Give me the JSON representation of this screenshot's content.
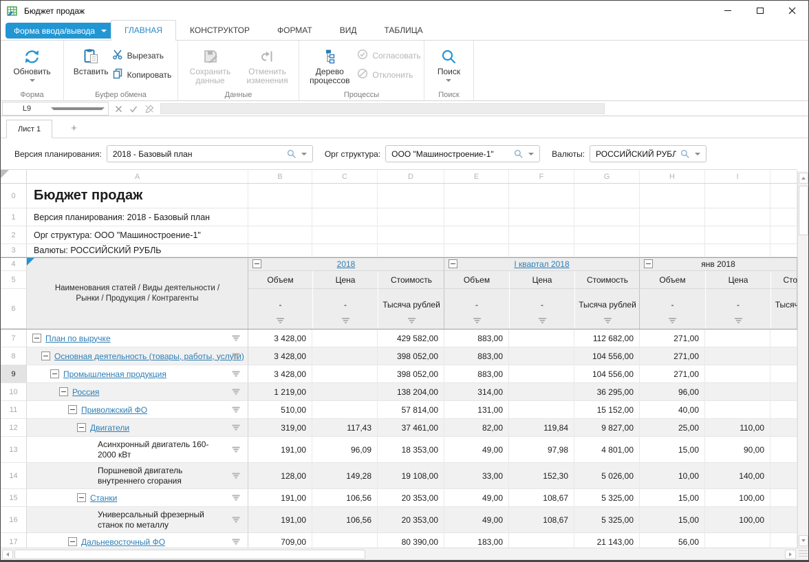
{
  "window": {
    "title": "Бюджет продаж"
  },
  "app_button": {
    "label": "Форма ввода/вывода"
  },
  "tabs": [
    "ГЛАВНАЯ",
    "КОНСТРУКТОР",
    "ФОРМАТ",
    "ВИД",
    "ТАБЛИЦА"
  ],
  "active_tab": "ГЛАВНАЯ",
  "ribbon": {
    "refresh_label": "Обновить",
    "paste_label": "Вставить",
    "cut_label": "Вырезать",
    "copy_label": "Копировать",
    "save_label": "Сохранить данные",
    "undo_label": "Отменить изменения",
    "tree_label": "Дерево процессов",
    "approve_label": "Согласовать",
    "reject_label": "Отклонить",
    "search_label": "Поиск",
    "group_form": "Форма",
    "group_clipboard": "Буфер обмена",
    "group_data": "Данные",
    "group_processes": "Процессы",
    "group_search": "Поиск",
    "accent_color": "#2196d3",
    "icon_color": "#2b7cb5",
    "disabled_color": "#b5b5b5"
  },
  "formula_bar": {
    "cell_ref": "L9",
    "formula": ""
  },
  "sheet": {
    "tab": "Лист 1",
    "add_label": "+"
  },
  "filters": {
    "version": {
      "label": "Версия планирования:",
      "value": "2018 - Базовый план"
    },
    "org": {
      "label": "Орг структура:",
      "value": "ООО \"Машиностроение-1\""
    },
    "currency": {
      "label": "Валюты:",
      "value": "РОССИЙСКИЙ РУБЛЬ"
    }
  },
  "grid": {
    "column_letters": [
      "A",
      "B",
      "C",
      "D",
      "E",
      "F",
      "G",
      "H",
      "I"
    ],
    "info_rows": [
      {
        "num": "0",
        "text": "Бюджет продаж"
      },
      {
        "num": "1",
        "text": "Версия планирования: 2018 - Базовый план"
      },
      {
        "num": "2",
        "text": "Орг структура: ООО \"Машиностроение-1\""
      },
      {
        "num": "3",
        "text": "Валюты: РОССИЙСКИЙ РУБЛЬ"
      }
    ],
    "header": {
      "row_nums": [
        "4",
        "5",
        "6"
      ],
      "stub": "Наименования статей / Виды деятельности / Рынки / Продукция / Контрагенты",
      "groups": [
        {
          "title": "2018",
          "link": true
        },
        {
          "title": "I квартал 2018",
          "link": true
        },
        {
          "title": "янв 2018",
          "link": false
        }
      ],
      "measures": [
        "Объем",
        "Цена",
        "Стоимость"
      ],
      "units": [
        "-",
        "-",
        "Тысяча рублей"
      ]
    },
    "rows": [
      {
        "num": 7,
        "label": "План по выручке",
        "indent": 0,
        "collapsible": true,
        "link": true,
        "values": [
          "3 428,00",
          "",
          "429 582,00",
          "883,00",
          "",
          "112 682,00",
          "271,00",
          ""
        ]
      },
      {
        "num": 8,
        "label": "Основная деятельность (товары, работы, услуги)",
        "indent": 1,
        "collapsible": true,
        "link": true,
        "values": [
          "3 428,00",
          "",
          "398 052,00",
          "883,00",
          "",
          "104 556,00",
          "271,00",
          ""
        ]
      },
      {
        "num": 9,
        "label": "Промышленная продукция",
        "indent": 2,
        "collapsible": true,
        "link": true,
        "selected": true,
        "values": [
          "3 428,00",
          "",
          "398 052,00",
          "883,00",
          "",
          "104 556,00",
          "271,00",
          ""
        ]
      },
      {
        "num": 10,
        "label": "Россия",
        "indent": 3,
        "collapsible": true,
        "link": true,
        "values": [
          "1 219,00",
          "",
          "138 204,00",
          "314,00",
          "",
          "36 295,00",
          "96,00",
          ""
        ]
      },
      {
        "num": 11,
        "label": "Приволжский ФО",
        "indent": 4,
        "collapsible": true,
        "link": true,
        "values": [
          "510,00",
          "",
          "57 814,00",
          "131,00",
          "",
          "15 152,00",
          "40,00",
          ""
        ]
      },
      {
        "num": 12,
        "label": "Двигатели",
        "indent": 5,
        "collapsible": true,
        "link": true,
        "values": [
          "319,00",
          "117,43",
          "37 461,00",
          "82,00",
          "119,84",
          "9 827,00",
          "25,00",
          "110,00"
        ]
      },
      {
        "num": 13,
        "label": "Асинхронный двигатель 160-2000 кВт",
        "indent": 6,
        "collapsible": false,
        "link": false,
        "tall": true,
        "values": [
          "191,00",
          "96,09",
          "18 353,00",
          "49,00",
          "97,98",
          "4 801,00",
          "15,00",
          "90,00"
        ]
      },
      {
        "num": 14,
        "label": "Поршневой двигатель внутреннего сгорания",
        "indent": 6,
        "collapsible": false,
        "link": false,
        "tall": true,
        "values": [
          "128,00",
          "149,28",
          "19 108,00",
          "33,00",
          "152,30",
          "5 026,00",
          "10,00",
          "140,00"
        ]
      },
      {
        "num": 15,
        "label": "Станки",
        "indent": 5,
        "collapsible": true,
        "link": true,
        "values": [
          "191,00",
          "106,56",
          "20 353,00",
          "49,00",
          "108,67",
          "5 325,00",
          "15,00",
          "100,00"
        ]
      },
      {
        "num": 16,
        "label": "Универсальный фрезерный станок по металлу",
        "indent": 6,
        "collapsible": false,
        "link": false,
        "tall": true,
        "values": [
          "191,00",
          "106,56",
          "20 353,00",
          "49,00",
          "108,67",
          "5 325,00",
          "15,00",
          "100,00"
        ]
      },
      {
        "num": 17,
        "label": "Дальневосточный ФО",
        "indent": 4,
        "collapsible": true,
        "link": true,
        "values": [
          "709,00",
          "",
          "80 390,00",
          "183,00",
          "",
          "21 143,00",
          "56,00",
          ""
        ]
      }
    ]
  }
}
